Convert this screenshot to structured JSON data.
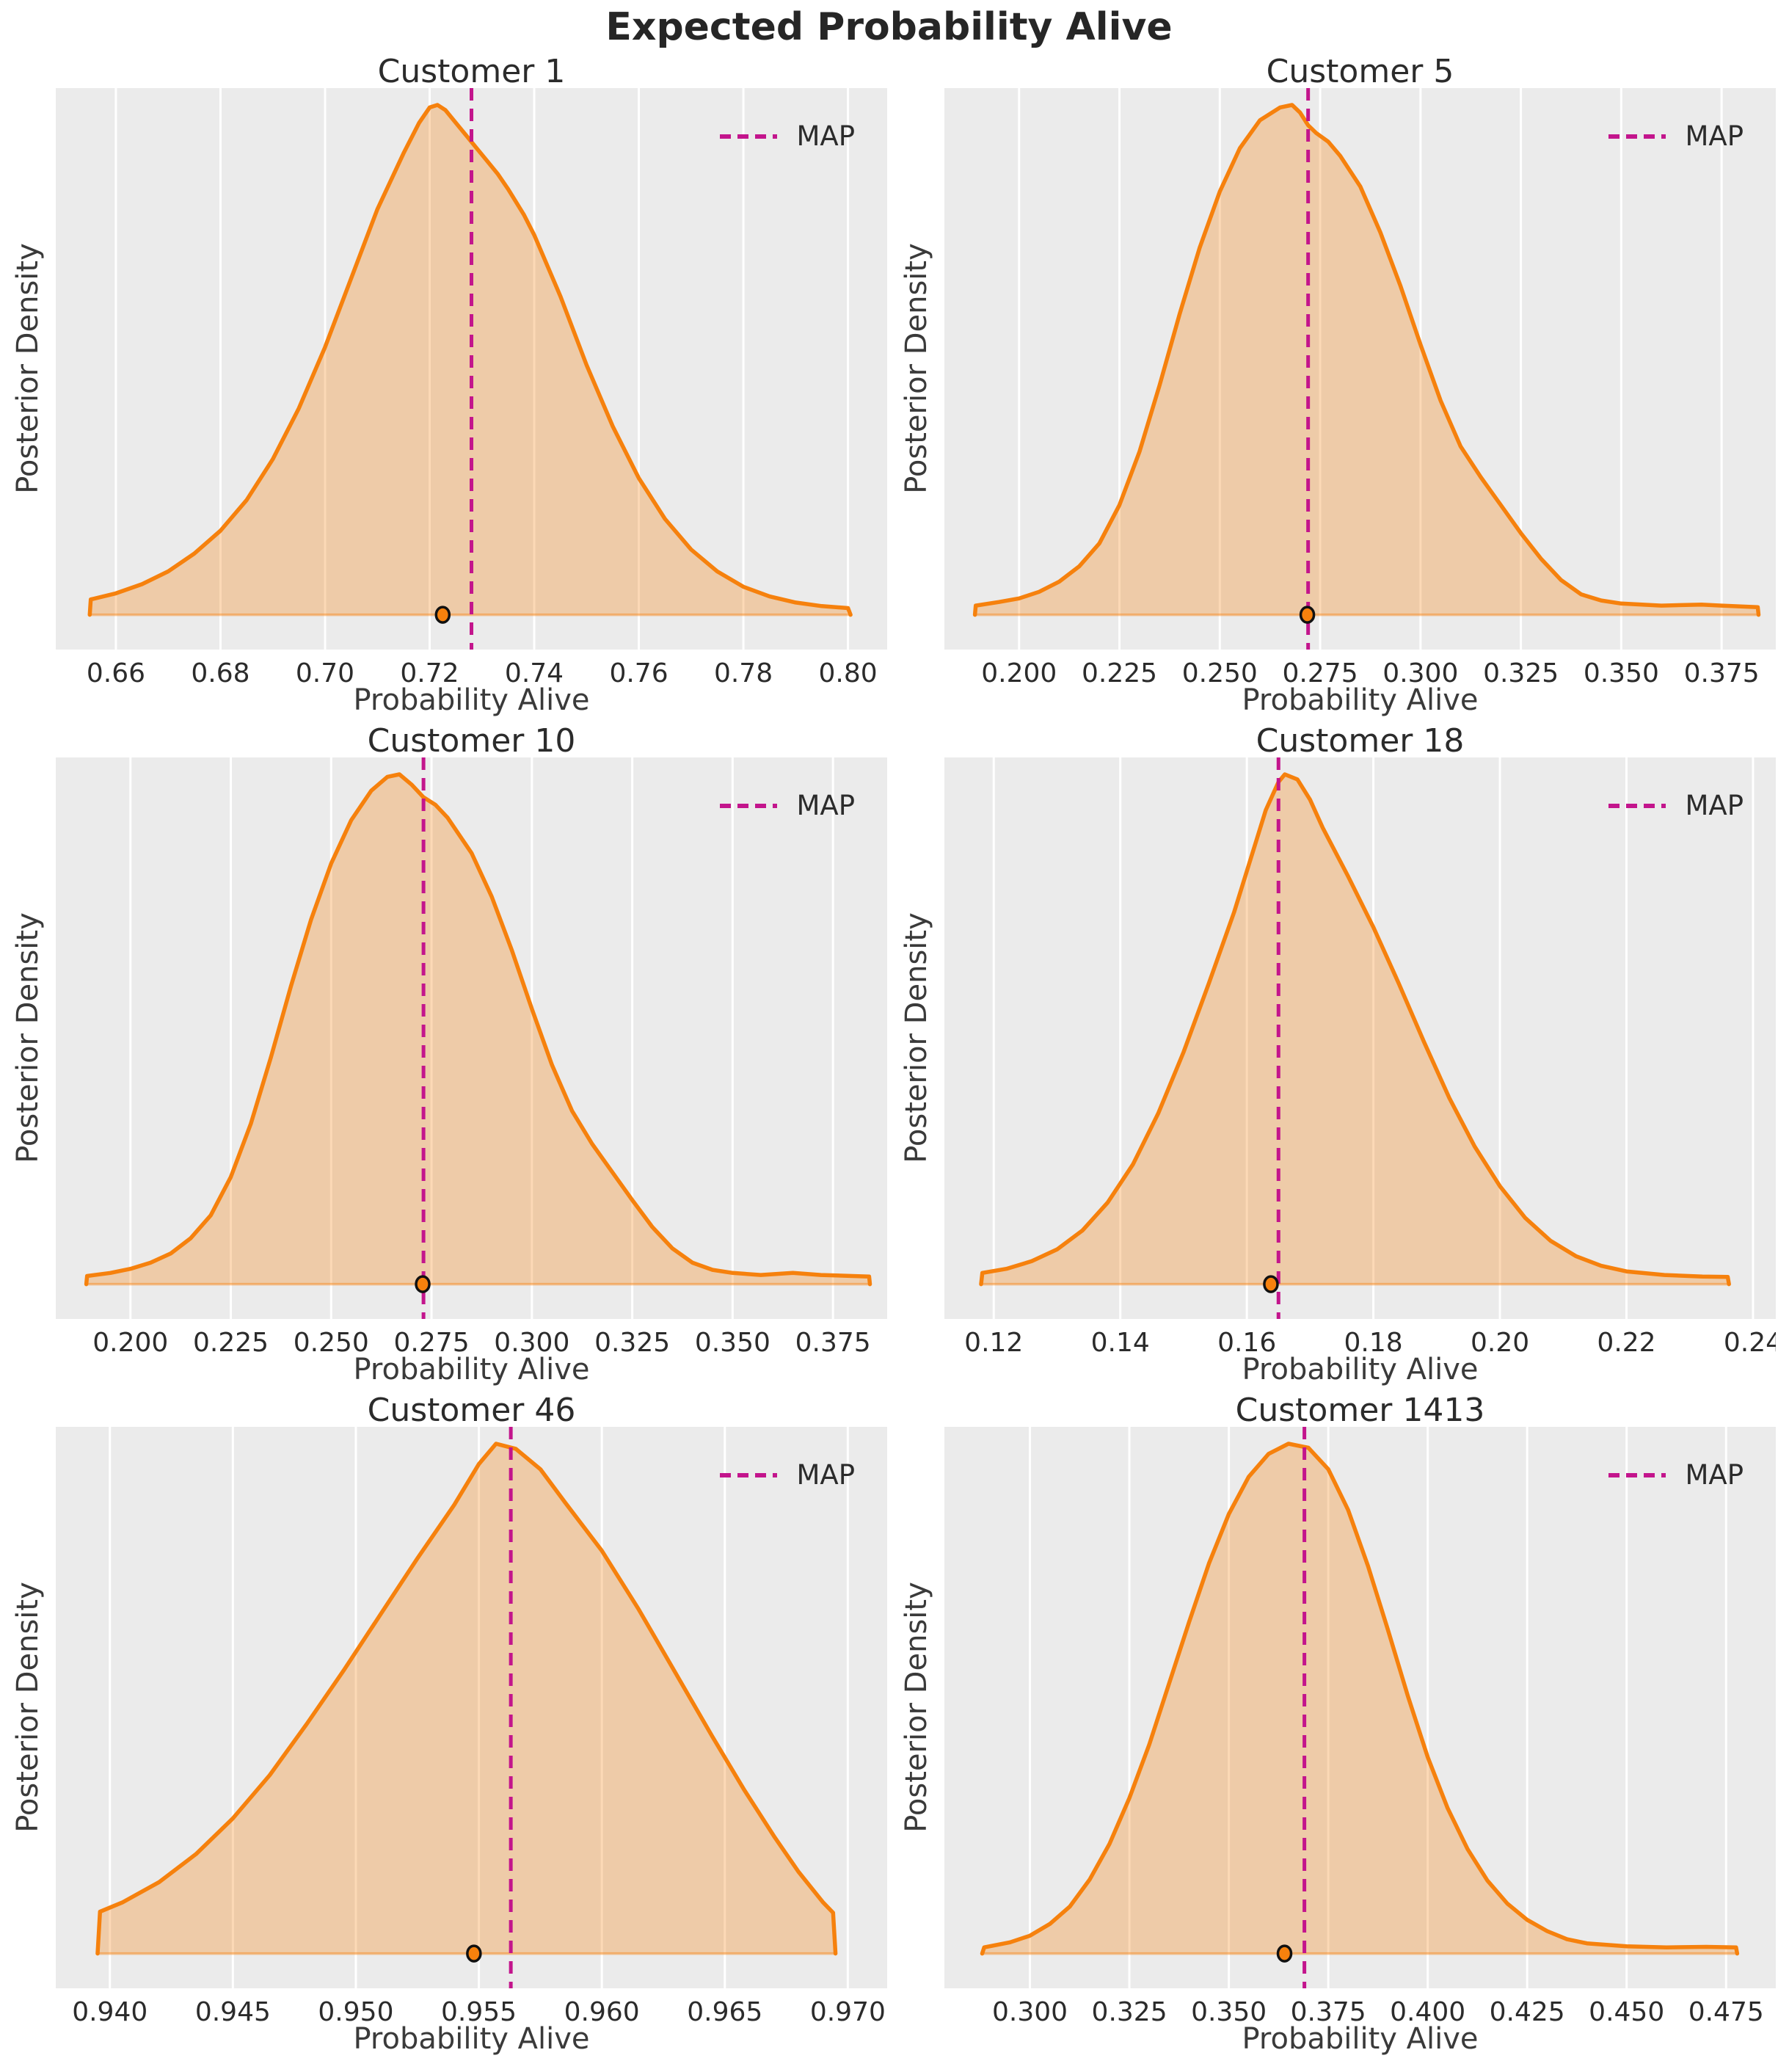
{
  "page": {
    "suptitle": "Expected Probability Alive"
  },
  "style": {
    "text_color": "#2b2b2b",
    "plot_bg": "#ebebeb",
    "grid_color": "#ffffff",
    "line_color": "#f6810d",
    "fill_color": "rgba(246,129,13,0.30)",
    "baseline_color": "rgba(246,129,13,0.45)",
    "map_color": "#c3158c",
    "dot_edge_color": "#111111"
  },
  "chart_data": [
    {
      "type": "area",
      "title": "Customer 1",
      "xlabel": "Probability Alive",
      "ylabel": "Posterior Density",
      "legend_label": "MAP",
      "legend_position": "upper right",
      "grid": "vertical-only",
      "xlim": [
        0.6485,
        0.8075
      ],
      "x_ticks": [
        "0.66",
        "0.68",
        "0.70",
        "0.72",
        "0.74",
        "0.76",
        "0.78",
        "0.80"
      ],
      "map_x": 0.728,
      "point_x": 0.7225,
      "density": [
        [
          0.655,
          0.0
        ],
        [
          0.6552,
          0.03
        ],
        [
          0.66,
          0.042
        ],
        [
          0.665,
          0.06
        ],
        [
          0.67,
          0.085
        ],
        [
          0.675,
          0.12
        ],
        [
          0.68,
          0.165
        ],
        [
          0.685,
          0.225
        ],
        [
          0.69,
          0.305
        ],
        [
          0.695,
          0.405
        ],
        [
          0.7,
          0.525
        ],
        [
          0.705,
          0.66
        ],
        [
          0.71,
          0.795
        ],
        [
          0.715,
          0.905
        ],
        [
          0.718,
          0.965
        ],
        [
          0.72,
          0.995
        ],
        [
          0.7215,
          1.0
        ],
        [
          0.723,
          0.99
        ],
        [
          0.725,
          0.965
        ],
        [
          0.727,
          0.94
        ],
        [
          0.729,
          0.915
        ],
        [
          0.731,
          0.89
        ],
        [
          0.733,
          0.865
        ],
        [
          0.735,
          0.835
        ],
        [
          0.738,
          0.785
        ],
        [
          0.74,
          0.745
        ],
        [
          0.745,
          0.625
        ],
        [
          0.75,
          0.49
        ],
        [
          0.755,
          0.37
        ],
        [
          0.76,
          0.268
        ],
        [
          0.765,
          0.188
        ],
        [
          0.77,
          0.128
        ],
        [
          0.775,
          0.085
        ],
        [
          0.78,
          0.055
        ],
        [
          0.785,
          0.036
        ],
        [
          0.79,
          0.024
        ],
        [
          0.795,
          0.017
        ],
        [
          0.8,
          0.013
        ],
        [
          0.8005,
          0.0
        ]
      ]
    },
    {
      "type": "area",
      "title": "Customer 5",
      "xlabel": "Probability Alive",
      "ylabel": "Posterior Density",
      "legend_label": "MAP",
      "legend_position": "upper right",
      "grid": "vertical-only",
      "xlim": [
        0.1814,
        0.3885
      ],
      "x_ticks": [
        "0.200",
        "0.225",
        "0.250",
        "0.275",
        "0.300",
        "0.325",
        "0.350",
        "0.375"
      ],
      "map_x": 0.272,
      "point_x": 0.2718,
      "density": [
        [
          0.189,
          0.0
        ],
        [
          0.1892,
          0.018
        ],
        [
          0.195,
          0.025
        ],
        [
          0.2,
          0.032
        ],
        [
          0.205,
          0.045
        ],
        [
          0.21,
          0.065
        ],
        [
          0.215,
          0.095
        ],
        [
          0.22,
          0.14
        ],
        [
          0.225,
          0.215
        ],
        [
          0.23,
          0.32
        ],
        [
          0.235,
          0.45
        ],
        [
          0.24,
          0.59
        ],
        [
          0.245,
          0.72
        ],
        [
          0.25,
          0.83
        ],
        [
          0.255,
          0.915
        ],
        [
          0.26,
          0.97
        ],
        [
          0.265,
          0.995
        ],
        [
          0.268,
          1.0
        ],
        [
          0.27,
          0.985
        ],
        [
          0.272,
          0.96
        ],
        [
          0.274,
          0.945
        ],
        [
          0.277,
          0.928
        ],
        [
          0.28,
          0.9
        ],
        [
          0.285,
          0.84
        ],
        [
          0.29,
          0.75
        ],
        [
          0.295,
          0.645
        ],
        [
          0.3,
          0.53
        ],
        [
          0.305,
          0.42
        ],
        [
          0.31,
          0.33
        ],
        [
          0.315,
          0.27
        ],
        [
          0.32,
          0.215
        ],
        [
          0.325,
          0.16
        ],
        [
          0.33,
          0.11
        ],
        [
          0.335,
          0.068
        ],
        [
          0.34,
          0.04
        ],
        [
          0.345,
          0.028
        ],
        [
          0.35,
          0.022
        ],
        [
          0.36,
          0.018
        ],
        [
          0.37,
          0.02
        ],
        [
          0.375,
          0.018
        ],
        [
          0.384,
          0.015
        ],
        [
          0.3842,
          0.0
        ]
      ]
    },
    {
      "type": "area",
      "title": "Customer 10",
      "xlabel": "Probability Alive",
      "ylabel": "Posterior Density",
      "legend_label": "MAP",
      "legend_position": "upper right",
      "grid": "vertical-only",
      "xlim": [
        0.1814,
        0.3885
      ],
      "x_ticks": [
        "0.200",
        "0.225",
        "0.250",
        "0.275",
        "0.300",
        "0.325",
        "0.350",
        "0.375"
      ],
      "map_x": 0.273,
      "point_x": 0.2728,
      "density": [
        [
          0.189,
          0.0
        ],
        [
          0.1892,
          0.016
        ],
        [
          0.195,
          0.022
        ],
        [
          0.2,
          0.03
        ],
        [
          0.205,
          0.042
        ],
        [
          0.21,
          0.06
        ],
        [
          0.215,
          0.09
        ],
        [
          0.22,
          0.135
        ],
        [
          0.225,
          0.21
        ],
        [
          0.23,
          0.315
        ],
        [
          0.235,
          0.445
        ],
        [
          0.24,
          0.585
        ],
        [
          0.245,
          0.715
        ],
        [
          0.25,
          0.825
        ],
        [
          0.255,
          0.91
        ],
        [
          0.26,
          0.968
        ],
        [
          0.264,
          0.995
        ],
        [
          0.267,
          1.0
        ],
        [
          0.27,
          0.98
        ],
        [
          0.273,
          0.955
        ],
        [
          0.276,
          0.94
        ],
        [
          0.279,
          0.915
        ],
        [
          0.285,
          0.845
        ],
        [
          0.29,
          0.76
        ],
        [
          0.295,
          0.655
        ],
        [
          0.3,
          0.54
        ],
        [
          0.305,
          0.43
        ],
        [
          0.31,
          0.34
        ],
        [
          0.315,
          0.275
        ],
        [
          0.32,
          0.22
        ],
        [
          0.325,
          0.165
        ],
        [
          0.33,
          0.112
        ],
        [
          0.335,
          0.07
        ],
        [
          0.34,
          0.042
        ],
        [
          0.345,
          0.028
        ],
        [
          0.35,
          0.022
        ],
        [
          0.357,
          0.018
        ],
        [
          0.365,
          0.022
        ],
        [
          0.372,
          0.018
        ],
        [
          0.384,
          0.015
        ],
        [
          0.3842,
          0.0
        ]
      ]
    },
    {
      "type": "area",
      "title": "Customer 18",
      "xlabel": "Probability Alive",
      "ylabel": "Posterior Density",
      "legend_label": "MAP",
      "legend_position": "upper right",
      "grid": "vertical-only",
      "xlim": [
        0.1122,
        0.2436
      ],
      "x_ticks": [
        "0.12",
        "0.14",
        "0.16",
        "0.18",
        "0.20",
        "0.22",
        "0.24"
      ],
      "map_x": 0.165,
      "point_x": 0.1638,
      "density": [
        [
          0.118,
          0.0
        ],
        [
          0.1182,
          0.022
        ],
        [
          0.122,
          0.03
        ],
        [
          0.126,
          0.045
        ],
        [
          0.13,
          0.068
        ],
        [
          0.134,
          0.105
        ],
        [
          0.138,
          0.16
        ],
        [
          0.142,
          0.235
        ],
        [
          0.146,
          0.335
        ],
        [
          0.15,
          0.455
        ],
        [
          0.154,
          0.59
        ],
        [
          0.158,
          0.73
        ],
        [
          0.161,
          0.85
        ],
        [
          0.163,
          0.93
        ],
        [
          0.165,
          0.985
        ],
        [
          0.166,
          1.0
        ],
        [
          0.168,
          0.99
        ],
        [
          0.17,
          0.95
        ],
        [
          0.172,
          0.895
        ],
        [
          0.176,
          0.8
        ],
        [
          0.18,
          0.7
        ],
        [
          0.184,
          0.59
        ],
        [
          0.188,
          0.475
        ],
        [
          0.192,
          0.365
        ],
        [
          0.196,
          0.27
        ],
        [
          0.2,
          0.192
        ],
        [
          0.204,
          0.13
        ],
        [
          0.208,
          0.085
        ],
        [
          0.212,
          0.055
        ],
        [
          0.216,
          0.036
        ],
        [
          0.22,
          0.025
        ],
        [
          0.226,
          0.018
        ],
        [
          0.232,
          0.015
        ],
        [
          0.236,
          0.014
        ],
        [
          0.2362,
          0.0
        ]
      ]
    },
    {
      "type": "area",
      "title": "Customer 46",
      "xlabel": "Probability Alive",
      "ylabel": "Posterior Density",
      "legend_label": "MAP",
      "legend_position": "upper right",
      "grid": "vertical-only",
      "xlim": [
        0.9378,
        0.9716
      ],
      "x_ticks": [
        "0.940",
        "0.945",
        "0.950",
        "0.955",
        "0.960",
        "0.965",
        "0.970"
      ],
      "map_x": 0.9563,
      "point_x": 0.9548,
      "density": [
        [
          0.9395,
          0.0
        ],
        [
          0.9396,
          0.082
        ],
        [
          0.9405,
          0.1
        ],
        [
          0.942,
          0.14
        ],
        [
          0.9435,
          0.195
        ],
        [
          0.945,
          0.265
        ],
        [
          0.9465,
          0.35
        ],
        [
          0.948,
          0.45
        ],
        [
          0.9495,
          0.555
        ],
        [
          0.951,
          0.665
        ],
        [
          0.9525,
          0.775
        ],
        [
          0.954,
          0.88
        ],
        [
          0.955,
          0.96
        ],
        [
          0.9557,
          1.0
        ],
        [
          0.9565,
          0.99
        ],
        [
          0.9575,
          0.95
        ],
        [
          0.9585,
          0.885
        ],
        [
          0.96,
          0.79
        ],
        [
          0.9615,
          0.675
        ],
        [
          0.963,
          0.55
        ],
        [
          0.9645,
          0.425
        ],
        [
          0.9658,
          0.32
        ],
        [
          0.967,
          0.23
        ],
        [
          0.968,
          0.16
        ],
        [
          0.969,
          0.1
        ],
        [
          0.9694,
          0.08
        ],
        [
          0.9695,
          0.0
        ]
      ]
    },
    {
      "type": "area",
      "title": "Customer 1413",
      "xlabel": "Probability Alive",
      "ylabel": "Posterior Density",
      "legend_label": "MAP",
      "legend_position": "upper right",
      "grid": "vertical-only",
      "xlim": [
        0.2785,
        0.4875
      ],
      "x_ticks": [
        "0.300",
        "0.325",
        "0.350",
        "0.375",
        "0.400",
        "0.425",
        "0.450",
        "0.475"
      ],
      "map_x": 0.369,
      "point_x": 0.364,
      "density": [
        [
          0.288,
          0.0
        ],
        [
          0.2885,
          0.012
        ],
        [
          0.295,
          0.022
        ],
        [
          0.3,
          0.035
        ],
        [
          0.305,
          0.058
        ],
        [
          0.31,
          0.092
        ],
        [
          0.315,
          0.145
        ],
        [
          0.32,
          0.215
        ],
        [
          0.325,
          0.305
        ],
        [
          0.33,
          0.41
        ],
        [
          0.335,
          0.53
        ],
        [
          0.34,
          0.65
        ],
        [
          0.345,
          0.765
        ],
        [
          0.35,
          0.862
        ],
        [
          0.355,
          0.935
        ],
        [
          0.36,
          0.98
        ],
        [
          0.365,
          1.0
        ],
        [
          0.37,
          0.992
        ],
        [
          0.375,
          0.95
        ],
        [
          0.38,
          0.87
        ],
        [
          0.385,
          0.76
        ],
        [
          0.39,
          0.635
        ],
        [
          0.395,
          0.505
        ],
        [
          0.4,
          0.385
        ],
        [
          0.405,
          0.285
        ],
        [
          0.41,
          0.205
        ],
        [
          0.415,
          0.143
        ],
        [
          0.42,
          0.098
        ],
        [
          0.425,
          0.066
        ],
        [
          0.43,
          0.044
        ],
        [
          0.435,
          0.028
        ],
        [
          0.44,
          0.02
        ],
        [
          0.45,
          0.014
        ],
        [
          0.46,
          0.012
        ],
        [
          0.47,
          0.013
        ],
        [
          0.4775,
          0.012
        ],
        [
          0.4778,
          0.0
        ]
      ]
    }
  ]
}
